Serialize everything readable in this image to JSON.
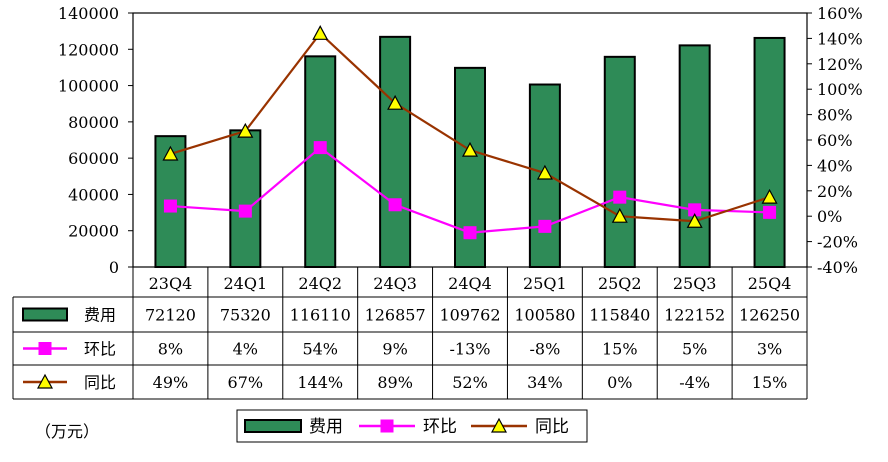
{
  "chart_data": {
    "type": "bar",
    "categories": [
      "23Q4",
      "24Q1",
      "24Q2",
      "24Q3",
      "24Q4",
      "25Q1",
      "25Q2",
      "25Q3",
      "25Q4"
    ],
    "series": [
      {
        "name": "费用",
        "kind": "bar",
        "axis": "left",
        "color": "#2e8b57",
        "values": [
          72120,
          75320,
          116110,
          126857,
          109762,
          100580,
          115840,
          122152,
          126250
        ],
        "labels": [
          "72120",
          "75320",
          "116110",
          "126857",
          "109762",
          "100580",
          "115840",
          "122152",
          "126250"
        ]
      },
      {
        "name": "环比",
        "kind": "line",
        "axis": "right",
        "color": "#ff00ff",
        "marker": "square",
        "values": [
          8,
          4,
          54,
          9,
          -13,
          -8,
          15,
          5,
          3
        ],
        "labels": [
          "8%",
          "4%",
          "54%",
          "9%",
          "-13%",
          "-8%",
          "15%",
          "5%",
          "3%"
        ]
      },
      {
        "name": "同比",
        "kind": "line",
        "axis": "right",
        "color": "#993300",
        "marker": "triangle",
        "values": [
          49,
          67,
          144,
          89,
          52,
          34,
          0,
          -4,
          15
        ],
        "labels": [
          "49%",
          "67%",
          "144%",
          "89%",
          "52%",
          "34%",
          "0%",
          "-4%",
          "15%"
        ]
      }
    ],
    "y_left": {
      "min": 0,
      "max": 140000,
      "step": 20000,
      "ticks": [
        "0",
        "20000",
        "40000",
        "60000",
        "80000",
        "100000",
        "120000",
        "140000"
      ]
    },
    "y_right": {
      "min": -40,
      "max": 160,
      "step": 20,
      "ticks": [
        "-40%",
        "-20%",
        "0%",
        "20%",
        "40%",
        "60%",
        "80%",
        "100%",
        "120%",
        "140%",
        "160%"
      ]
    },
    "unit_label": "（万元）",
    "legend_position": "bottom",
    "gridlines": false
  }
}
